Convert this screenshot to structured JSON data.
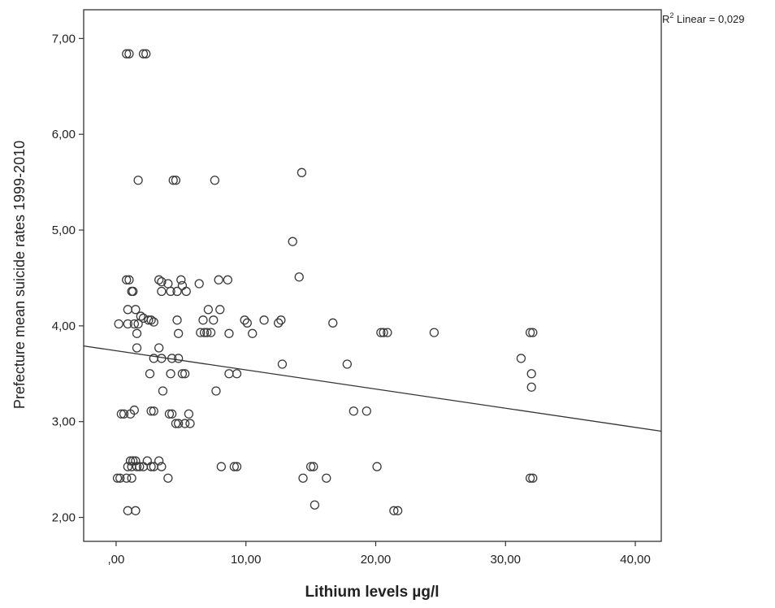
{
  "chart_data": {
    "type": "scatter",
    "xlabel": "Lithium levels µg/l",
    "ylabel": "Prefecture mean suicide rates 1999-2010",
    "xlim": [
      -2.5,
      42
    ],
    "ylim": [
      1.75,
      7.3
    ],
    "x_ticks": [
      0,
      10,
      20,
      30,
      40
    ],
    "x_tick_labels": [
      ",00",
      "10,00",
      "20,00",
      "30,00",
      "40,00"
    ],
    "y_ticks": [
      2,
      3,
      4,
      5,
      6,
      7
    ],
    "y_tick_labels": [
      "2,00",
      "3,00",
      "4,00",
      "5,00",
      "6,00",
      "7,00"
    ],
    "grid": false,
    "marker": "open-circle",
    "fit_line": {
      "label_prefix": "R",
      "label_sup": "2",
      "label_rest": " Linear = 0,029",
      "x": [
        -2.5,
        42
      ],
      "y": [
        3.79,
        2.9
      ]
    },
    "points": [
      {
        "x": 0.8,
        "y": 6.84
      },
      {
        "x": 1.0,
        "y": 6.84
      },
      {
        "x": 2.1,
        "y": 6.84
      },
      {
        "x": 2.3,
        "y": 6.84
      },
      {
        "x": 1.7,
        "y": 5.52
      },
      {
        "x": 4.4,
        "y": 5.52
      },
      {
        "x": 4.6,
        "y": 5.52
      },
      {
        "x": 7.6,
        "y": 5.52
      },
      {
        "x": 14.3,
        "y": 5.6
      },
      {
        "x": 13.6,
        "y": 4.88
      },
      {
        "x": 14.1,
        "y": 4.51
      },
      {
        "x": 0.8,
        "y": 4.48
      },
      {
        "x": 1.0,
        "y": 4.48
      },
      {
        "x": 3.3,
        "y": 4.48
      },
      {
        "x": 3.5,
        "y": 4.46
      },
      {
        "x": 5.0,
        "y": 4.48
      },
      {
        "x": 7.9,
        "y": 4.48
      },
      {
        "x": 8.6,
        "y": 4.48
      },
      {
        "x": 4.0,
        "y": 4.44
      },
      {
        "x": 5.1,
        "y": 4.42
      },
      {
        "x": 6.4,
        "y": 4.44
      },
      {
        "x": 1.2,
        "y": 4.36
      },
      {
        "x": 1.3,
        "y": 4.36
      },
      {
        "x": 3.5,
        "y": 4.36
      },
      {
        "x": 4.2,
        "y": 4.36
      },
      {
        "x": 4.7,
        "y": 4.36
      },
      {
        "x": 5.4,
        "y": 4.36
      },
      {
        "x": 0.9,
        "y": 4.17
      },
      {
        "x": 1.5,
        "y": 4.17
      },
      {
        "x": 7.1,
        "y": 4.17
      },
      {
        "x": 8.0,
        "y": 4.17
      },
      {
        "x": 1.9,
        "y": 4.1
      },
      {
        "x": 2.1,
        "y": 4.08
      },
      {
        "x": 2.5,
        "y": 4.06
      },
      {
        "x": 2.7,
        "y": 4.06
      },
      {
        "x": 2.9,
        "y": 4.04
      },
      {
        "x": 4.7,
        "y": 4.06
      },
      {
        "x": 6.7,
        "y": 4.06
      },
      {
        "x": 7.5,
        "y": 4.06
      },
      {
        "x": 9.9,
        "y": 4.06
      },
      {
        "x": 11.4,
        "y": 4.06
      },
      {
        "x": 12.7,
        "y": 4.06
      },
      {
        "x": 10.1,
        "y": 4.03
      },
      {
        "x": 12.5,
        "y": 4.03
      },
      {
        "x": 16.7,
        "y": 4.03
      },
      {
        "x": 0.2,
        "y": 4.02
      },
      {
        "x": 0.9,
        "y": 4.02
      },
      {
        "x": 1.4,
        "y": 4.02
      },
      {
        "x": 1.7,
        "y": 4.02
      },
      {
        "x": 1.6,
        "y": 3.92
      },
      {
        "x": 4.8,
        "y": 3.92
      },
      {
        "x": 6.5,
        "y": 3.93
      },
      {
        "x": 6.8,
        "y": 3.93
      },
      {
        "x": 7.0,
        "y": 3.93
      },
      {
        "x": 7.3,
        "y": 3.93
      },
      {
        "x": 8.7,
        "y": 3.92
      },
      {
        "x": 10.5,
        "y": 3.92
      },
      {
        "x": 20.4,
        "y": 3.93
      },
      {
        "x": 20.6,
        "y": 3.93
      },
      {
        "x": 20.9,
        "y": 3.93
      },
      {
        "x": 24.5,
        "y": 3.93
      },
      {
        "x": 31.9,
        "y": 3.93
      },
      {
        "x": 32.1,
        "y": 3.93
      },
      {
        "x": 1.6,
        "y": 3.77
      },
      {
        "x": 3.3,
        "y": 3.77
      },
      {
        "x": 2.9,
        "y": 3.66
      },
      {
        "x": 3.5,
        "y": 3.66
      },
      {
        "x": 4.3,
        "y": 3.66
      },
      {
        "x": 4.8,
        "y": 3.66
      },
      {
        "x": 31.2,
        "y": 3.66
      },
      {
        "x": 12.8,
        "y": 3.6
      },
      {
        "x": 17.8,
        "y": 3.6
      },
      {
        "x": 2.6,
        "y": 3.5
      },
      {
        "x": 4.2,
        "y": 3.5
      },
      {
        "x": 5.1,
        "y": 3.5
      },
      {
        "x": 5.3,
        "y": 3.5
      },
      {
        "x": 8.7,
        "y": 3.5
      },
      {
        "x": 9.3,
        "y": 3.5
      },
      {
        "x": 32.0,
        "y": 3.5
      },
      {
        "x": 3.6,
        "y": 3.32
      },
      {
        "x": 7.7,
        "y": 3.32
      },
      {
        "x": 32.0,
        "y": 3.36
      },
      {
        "x": 0.4,
        "y": 3.08
      },
      {
        "x": 0.6,
        "y": 3.08
      },
      {
        "x": 1.1,
        "y": 3.08
      },
      {
        "x": 1.4,
        "y": 3.12
      },
      {
        "x": 2.7,
        "y": 3.11
      },
      {
        "x": 2.9,
        "y": 3.11
      },
      {
        "x": 4.1,
        "y": 3.08
      },
      {
        "x": 4.3,
        "y": 3.08
      },
      {
        "x": 5.6,
        "y": 3.08
      },
      {
        "x": 18.3,
        "y": 3.11
      },
      {
        "x": 19.3,
        "y": 3.11
      },
      {
        "x": 4.6,
        "y": 2.98
      },
      {
        "x": 4.8,
        "y": 2.98
      },
      {
        "x": 5.3,
        "y": 2.98
      },
      {
        "x": 5.7,
        "y": 2.98
      },
      {
        "x": 1.1,
        "y": 2.59
      },
      {
        "x": 1.3,
        "y": 2.59
      },
      {
        "x": 1.5,
        "y": 2.59
      },
      {
        "x": 2.4,
        "y": 2.59
      },
      {
        "x": 3.3,
        "y": 2.59
      },
      {
        "x": 0.9,
        "y": 2.53
      },
      {
        "x": 1.2,
        "y": 2.53
      },
      {
        "x": 1.6,
        "y": 2.53
      },
      {
        "x": 1.8,
        "y": 2.53
      },
      {
        "x": 2.1,
        "y": 2.53
      },
      {
        "x": 2.7,
        "y": 2.53
      },
      {
        "x": 2.9,
        "y": 2.53
      },
      {
        "x": 3.5,
        "y": 2.53
      },
      {
        "x": 8.1,
        "y": 2.53
      },
      {
        "x": 9.1,
        "y": 2.53
      },
      {
        "x": 9.3,
        "y": 2.53
      },
      {
        "x": 15.0,
        "y": 2.53
      },
      {
        "x": 15.2,
        "y": 2.53
      },
      {
        "x": 20.1,
        "y": 2.53
      },
      {
        "x": 0.1,
        "y": 2.41
      },
      {
        "x": 0.3,
        "y": 2.41
      },
      {
        "x": 0.8,
        "y": 2.41
      },
      {
        "x": 1.2,
        "y": 2.41
      },
      {
        "x": 4.0,
        "y": 2.41
      },
      {
        "x": 14.4,
        "y": 2.41
      },
      {
        "x": 16.2,
        "y": 2.41
      },
      {
        "x": 31.9,
        "y": 2.41
      },
      {
        "x": 32.1,
        "y": 2.41
      },
      {
        "x": 15.3,
        "y": 2.13
      },
      {
        "x": 0.9,
        "y": 2.07
      },
      {
        "x": 1.5,
        "y": 2.07
      },
      {
        "x": 21.4,
        "y": 2.07
      },
      {
        "x": 21.7,
        "y": 2.07
      }
    ]
  }
}
